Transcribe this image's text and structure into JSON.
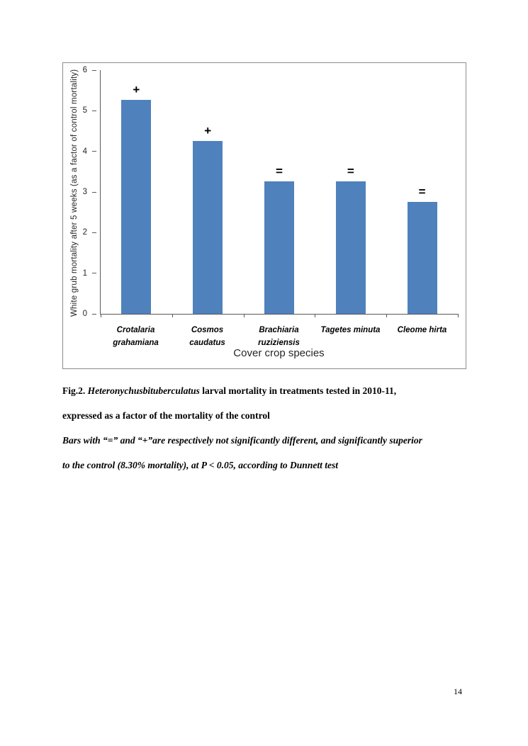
{
  "page": {
    "number": "14"
  },
  "caption": {
    "fig_label": "Fig.2. ",
    "species": "Heteronychusbituberculatus",
    "line1_rest": " larval mortality in treatments tested in 2010-11,",
    "line2": "expressed as a factor of the mortality of the control",
    "line3": "Bars with “=” and “+”are respectively not significantly different, and significantly superior",
    "line4": "to the control (8.30% mortality), at P < 0.05, according to Dunnett test"
  },
  "chart_data": {
    "type": "bar",
    "title": "",
    "xlabel": "Cover crop species",
    "ylabel": "White grub mortality after 5 weeks (as a factor of control mortality)",
    "categories": [
      "Crotalaria grahamiana",
      "Cosmos caudatus",
      "Brachiaria ruziziensis",
      "Tagetes minuta",
      "Cleome hirta"
    ],
    "values": [
      5.27,
      4.26,
      3.26,
      3.26,
      2.75
    ],
    "markers": [
      "+",
      "+",
      "=",
      "=",
      "="
    ],
    "marker_meaning": {
      "+": "significantly superior to control",
      "=": "not significantly different from control"
    },
    "ylim": [
      0,
      6
    ],
    "yticks": [
      0,
      1,
      2,
      3,
      4,
      5,
      6
    ],
    "bar_color": "#4f81bd",
    "grid": false,
    "legend": null
  }
}
